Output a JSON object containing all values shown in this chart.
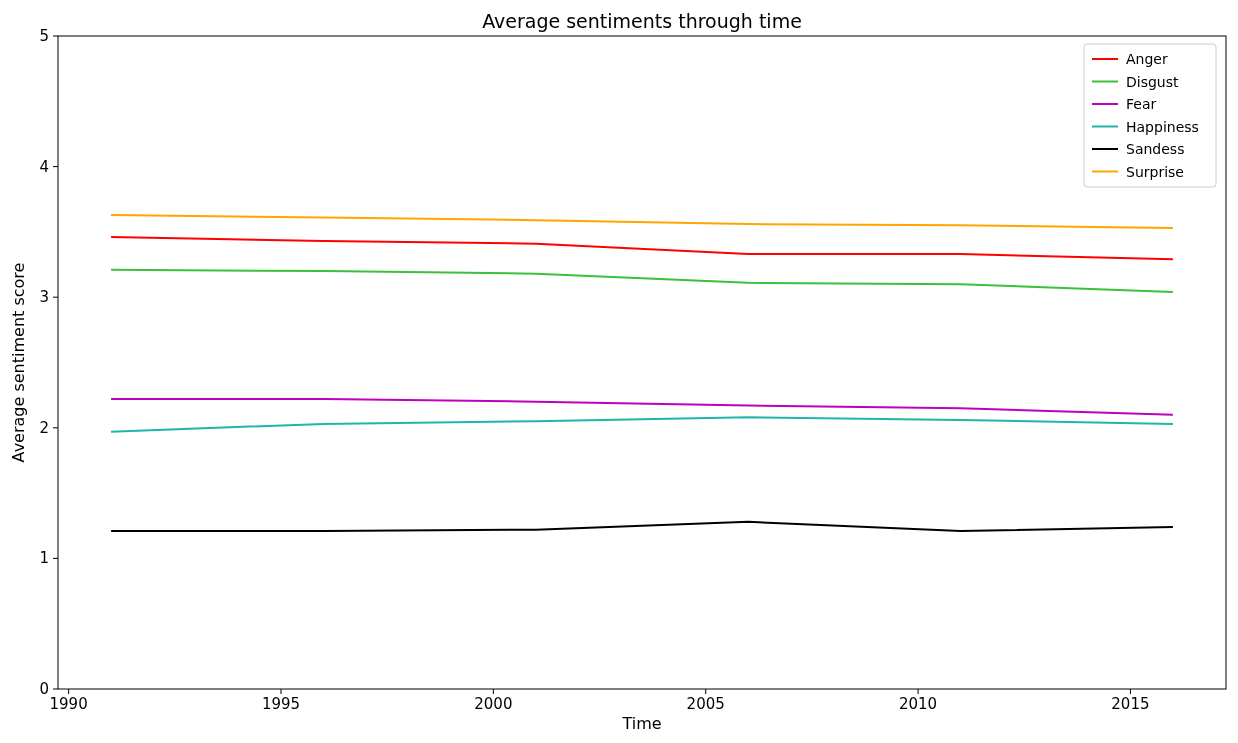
{
  "chart_data": {
    "type": "line",
    "title": "Average sentiments through time",
    "xlabel": "Time",
    "ylabel": "Average sentiment score",
    "x": [
      1991,
      1996,
      2001,
      2006,
      2011,
      2016
    ],
    "xlim": [
      1989.75,
      2017.25
    ],
    "xticks": [
      1990,
      1995,
      2000,
      2005,
      2010,
      2015
    ],
    "ylim": [
      0,
      5
    ],
    "yticks": [
      0,
      1,
      2,
      3,
      4,
      5
    ],
    "grid": false,
    "legend": "top right",
    "marker": "none",
    "line_style": "solid",
    "series": [
      {
        "name": "Anger",
        "color": "#ff0000",
        "values": [
          3.46,
          3.43,
          3.41,
          3.33,
          3.33,
          3.29
        ]
      },
      {
        "name": "Disgust",
        "color": "#3cbf3c",
        "values": [
          3.21,
          3.2,
          3.18,
          3.11,
          3.1,
          3.04
        ]
      },
      {
        "name": "Fear",
        "color": "#bf00bf",
        "values": [
          2.22,
          2.22,
          2.2,
          2.17,
          2.15,
          2.1
        ]
      },
      {
        "name": "Happiness",
        "color": "#1fb5ad",
        "values": [
          1.97,
          2.03,
          2.05,
          2.08,
          2.06,
          2.03
        ]
      },
      {
        "name": "Sandess",
        "color": "#000000",
        "values": [
          1.21,
          1.21,
          1.22,
          1.28,
          1.21,
          1.24
        ]
      },
      {
        "name": "Surprise",
        "color": "#ffa500",
        "values": [
          3.63,
          3.61,
          3.59,
          3.56,
          3.55,
          3.53
        ]
      }
    ]
  }
}
